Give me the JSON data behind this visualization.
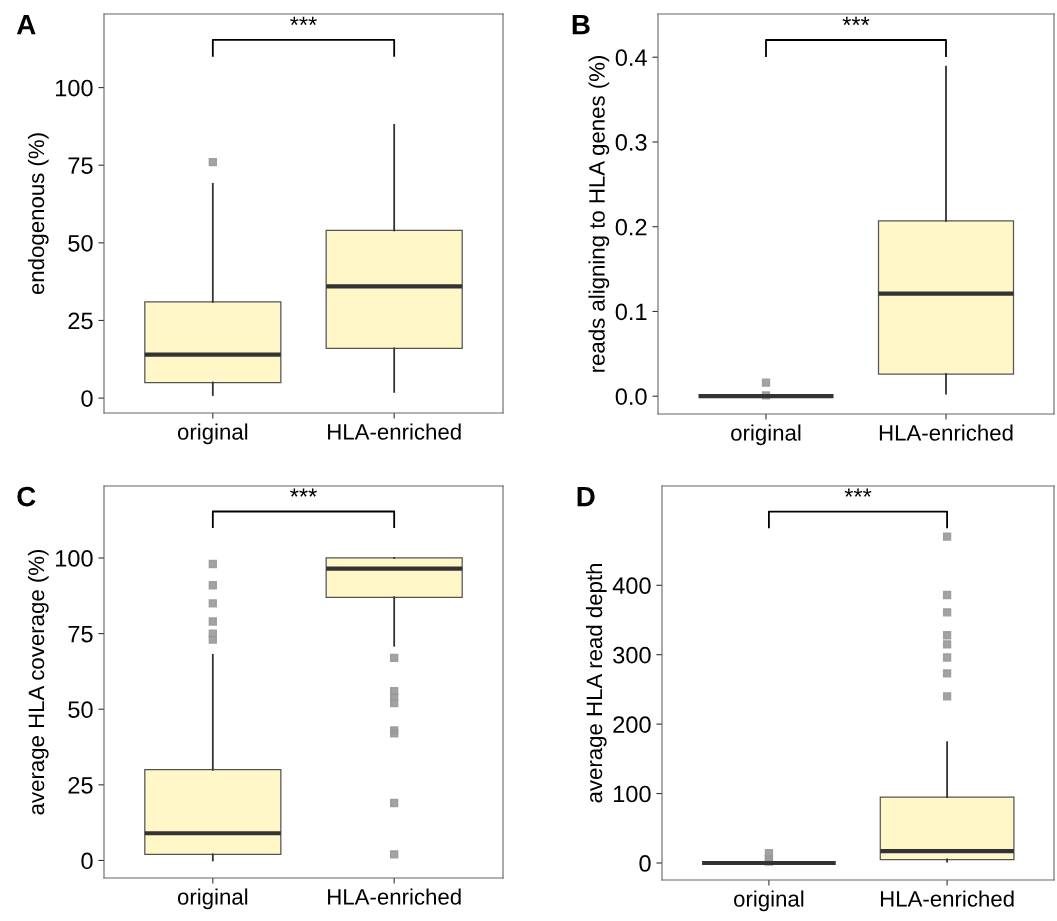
{
  "chart_data": [
    {
      "type": "box",
      "title": "A",
      "categories": [
        "original",
        "HLA-enriched"
      ],
      "ylabel": "endogenous (%)",
      "color": "#fff7c8",
      "boxes": [
        {
          "low": 1,
          "q1": 5,
          "median": 14,
          "q3": 31,
          "high": 69,
          "outliers": [
            76
          ]
        },
        {
          "low": 2,
          "q1": 16,
          "median": 36,
          "q3": 54,
          "high": 88
        }
      ],
      "ylim": [
        -4.8,
        123.7
      ],
      "yticks": [
        0,
        25,
        50,
        75,
        100
      ],
      "grid": false,
      "marker": "square",
      "annotations": [
        "***"
      ]
    },
    {
      "type": "box",
      "title": "B",
      "categories": [
        "original",
        "HLA-enriched"
      ],
      "ylabel": "reads aligning to HLA genes (%)",
      "color": "#fff7c8",
      "boxes": [
        {
          "low": 0,
          "q1": 0,
          "median": 0,
          "q3": 0,
          "high": 0,
          "outliers": [
            0.016,
            0.001
          ]
        },
        {
          "low": 0.003,
          "q1": 0.026,
          "median": 0.121,
          "q3": 0.207,
          "high": 0.389
        }
      ],
      "ylim": [
        -0.021,
        0.451
      ],
      "yticks": [
        {
          "value": 0,
          "label": "0.0"
        },
        0.1,
        0.2,
        0.3,
        0.4
      ],
      "grid": false,
      "marker": "square",
      "annotations": [
        "***"
      ]
    },
    {
      "type": "box",
      "title": "C",
      "categories": [
        "original",
        "HLA-enriched"
      ],
      "ylabel": "average HLA coverage (%)",
      "color": "#fff7c8",
      "boxes": [
        {
          "low": 0,
          "q1": 2,
          "median": 9,
          "q3": 30,
          "high": 68,
          "outliers": [
            98,
            91,
            85,
            79,
            75,
            73
          ]
        },
        {
          "low": 71,
          "q1": 87,
          "median": 96.5,
          "q3": 100,
          "high": 100,
          "outliers": [
            67,
            56,
            54,
            52,
            43,
            42,
            19,
            2
          ]
        }
      ],
      "ylim": [
        -5.8,
        123.8
      ],
      "yticks": [
        0,
        25,
        50,
        75,
        100
      ],
      "grid": false,
      "marker": "square",
      "annotations": [
        "***"
      ]
    },
    {
      "type": "box",
      "title": "D",
      "categories": [
        "original",
        "HLA-enriched"
      ],
      "ylabel": "average HLA read depth",
      "color": "#fff7c8",
      "boxes": [
        {
          "low": 0,
          "q1": 0,
          "median": 0,
          "q3": 0,
          "high": 0,
          "outliers": [
            14,
            6,
            2
          ]
        },
        {
          "low": 2,
          "q1": 5,
          "median": 17,
          "q3": 95,
          "high": 174,
          "outliers": [
            470,
            386,
            361,
            328,
            315,
            296,
            273,
            240
          ]
        }
      ],
      "ylim": [
        -24.5,
        543
      ],
      "yticks": [
        0,
        100,
        200,
        300,
        400
      ],
      "grid": false,
      "marker": "square",
      "annotations": [
        "***"
      ]
    }
  ]
}
